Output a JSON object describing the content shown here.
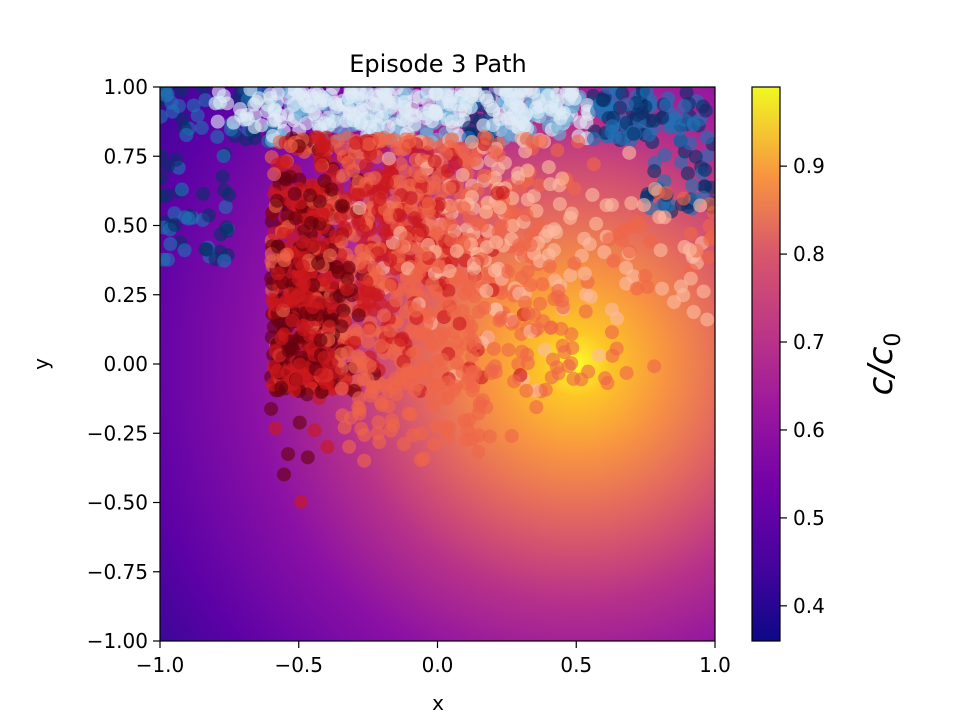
{
  "chart_data": {
    "type": "heatmap",
    "title": "Episode 3 Path",
    "xlabel": "x",
    "ylabel": "y",
    "xlim": [
      -1.0,
      1.0
    ],
    "ylim": [
      -1.0,
      1.0
    ],
    "x_ticks": [
      "−1.0",
      "−0.5",
      "0.0",
      "0.5",
      "1.0"
    ],
    "y_ticks": [
      "−1.00",
      "−0.75",
      "−0.50",
      "−0.25",
      "0.00",
      "0.25",
      "0.50",
      "0.75",
      "1.00"
    ],
    "colormap": "plasma",
    "field_peak": [
      0.5,
      0.0
    ],
    "colorbar": {
      "label": "c/c",
      "label_subscript": "0",
      "range": [
        0.36,
        0.99
      ],
      "ticks": [
        "0.4",
        "0.5",
        "0.6",
        "0.7",
        "0.8",
        "0.9"
      ],
      "tick_values": [
        0.4,
        0.5,
        0.6,
        0.7,
        0.8,
        0.9
      ]
    },
    "path_colors": [
      "#08306b",
      "#2171b5",
      "#6baed6",
      "#deebf7",
      "#fcbba1",
      "#ef6548",
      "#cb181d",
      "#67000d"
    ],
    "grid": false
  }
}
